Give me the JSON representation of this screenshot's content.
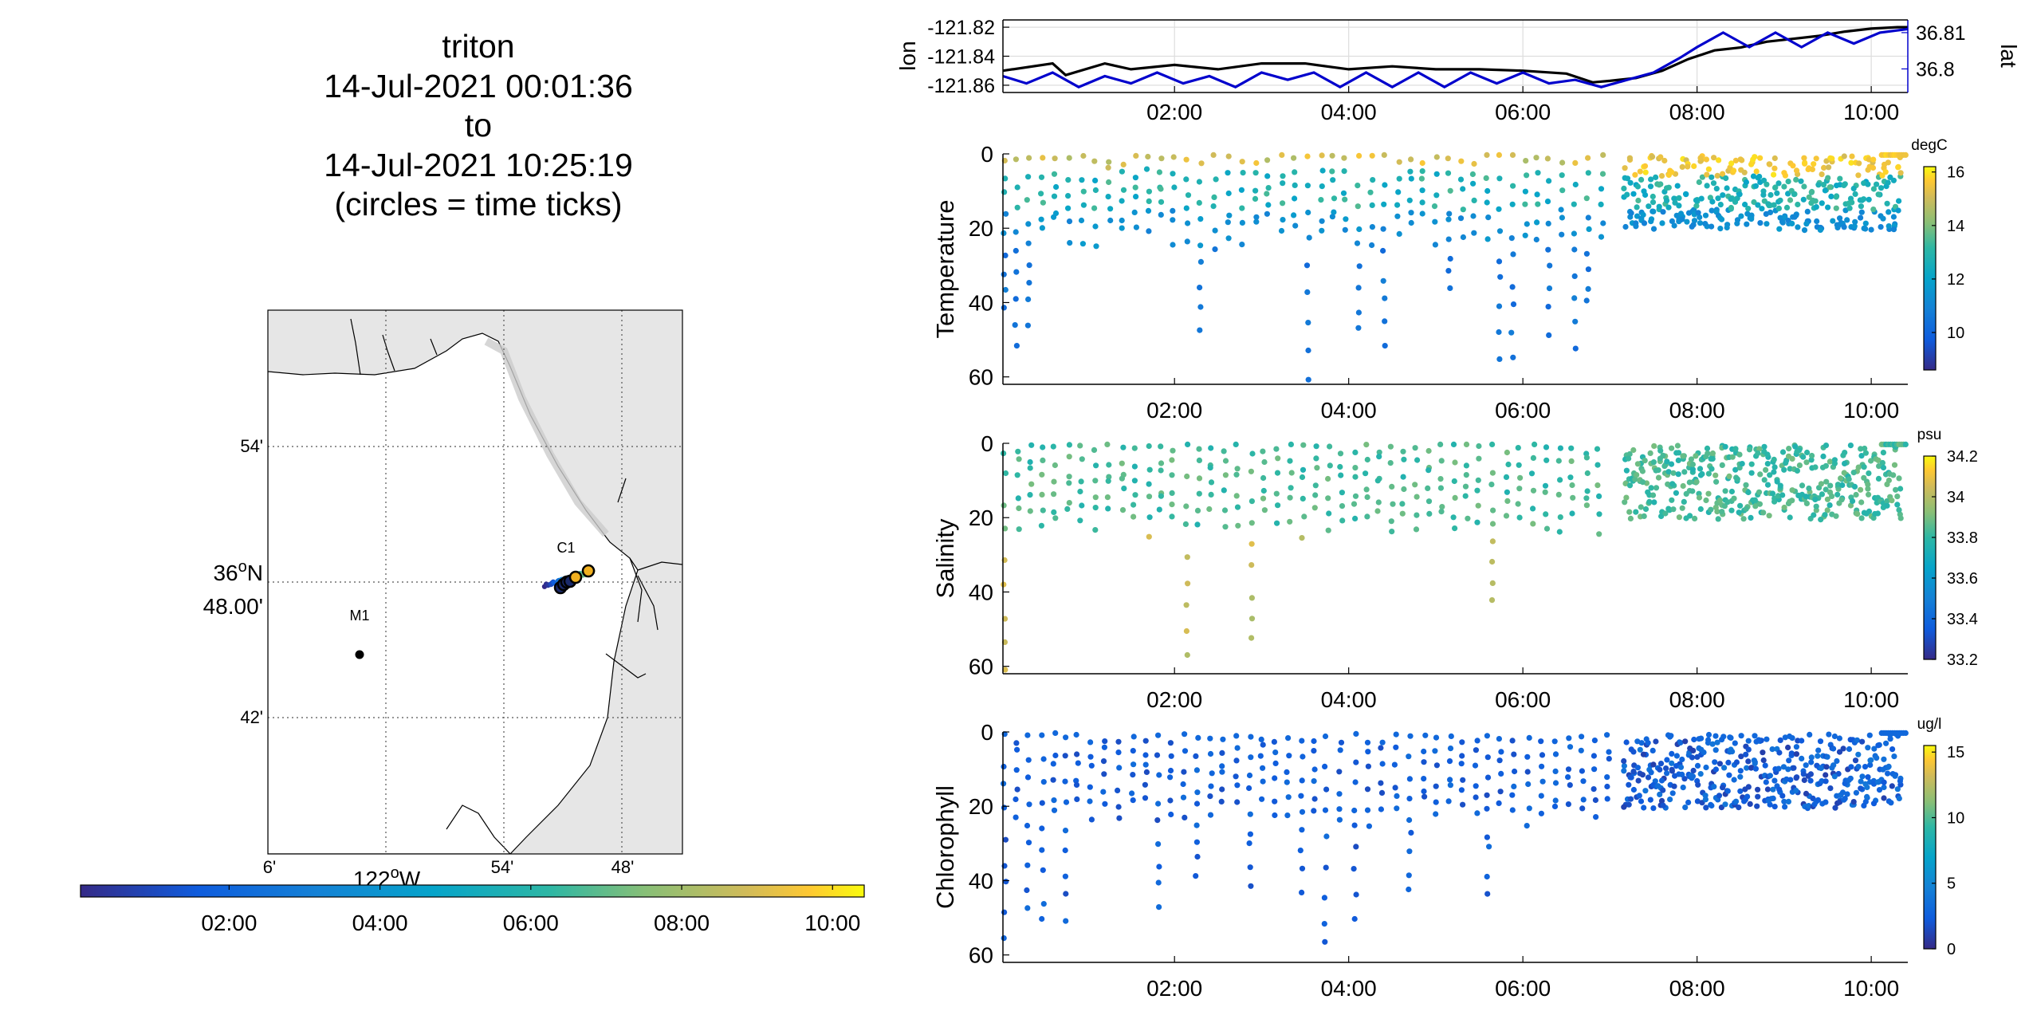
{
  "title": {
    "lines": [
      "triton",
      "14-Jul-2021 00:01:36",
      "to",
      "14-Jul-2021 10:25:19",
      "(circles = time ticks)"
    ]
  },
  "map": {
    "lat_ticks": [
      "54'",
      "42'"
    ],
    "lat_center_label_deg": "36",
    "lat_center_label_sup": "o",
    "lat_center_label_hem": "N",
    "lat_center_label_min": "48.00'",
    "lon_ticks": [
      "6'",
      "54'",
      "48'"
    ],
    "lon_center_label_deg": "122",
    "lon_center_label_sup": "o",
    "lon_center_label_hem": "W",
    "stations": [
      {
        "name": "M1"
      },
      {
        "name": "C1"
      }
    ],
    "colors": {
      "land": "#e6e6e6",
      "water": "#ffffff",
      "coast": "#000000"
    }
  },
  "time_colorbar": {
    "ticks": [
      "02:00",
      "04:00",
      "06:00",
      "08:00",
      "10:00"
    ],
    "tick_hours": [
      2,
      4,
      6,
      8,
      10
    ],
    "range_hours": [
      0.03,
      10.42
    ]
  },
  "chart_data": [
    {
      "type": "line",
      "ylabel": "lon",
      "y2label": "lat",
      "x_ticks": [
        "02:00",
        "04:00",
        "06:00",
        "08:00",
        "10:00"
      ],
      "x_tick_hours": [
        2,
        4,
        6,
        8,
        10
      ],
      "xlim_hours": [
        0.03,
        10.42
      ],
      "y_ticks": [
        "-121.82",
        "-121.84",
        "-121.86"
      ],
      "y_tick_values": [
        -121.82,
        -121.84,
        -121.86
      ],
      "ylim": [
        -121.865,
        -121.815
      ],
      "y2_ticks": [
        "36.81",
        "36.8"
      ],
      "y2_tick_values": [
        36.81,
        36.8
      ],
      "y2lim": [
        36.7935,
        36.8135
      ],
      "grid": true,
      "series": [
        {
          "axis": "left",
          "color": "#000000",
          "x": [
            0.03,
            0.6,
            0.75,
            1.2,
            1.5,
            2.0,
            2.5,
            3.0,
            3.5,
            4.0,
            4.5,
            5.0,
            5.5,
            6.0,
            6.5,
            6.8,
            7.0,
            7.3,
            7.6,
            7.9,
            8.2,
            8.5,
            8.8,
            9.1,
            9.4,
            9.7,
            10.0,
            10.3,
            10.42
          ],
          "y": [
            -121.85,
            -121.845,
            -121.853,
            -121.845,
            -121.849,
            -121.846,
            -121.849,
            -121.845,
            -121.845,
            -121.849,
            -121.847,
            -121.849,
            -121.849,
            -121.85,
            -121.852,
            -121.858,
            -121.857,
            -121.855,
            -121.85,
            -121.842,
            -121.836,
            -121.834,
            -121.83,
            -121.828,
            -121.826,
            -121.823,
            -121.821,
            -121.82,
            -121.82
          ]
        },
        {
          "axis": "right",
          "color": "#0000cc",
          "x": [
            0.03,
            0.3,
            0.6,
            0.9,
            1.2,
            1.5,
            1.8,
            2.1,
            2.4,
            2.7,
            3.0,
            3.3,
            3.6,
            3.9,
            4.2,
            4.5,
            4.8,
            5.1,
            5.4,
            5.7,
            6.0,
            6.3,
            6.6,
            6.9,
            7.2,
            7.5,
            7.8,
            8.0,
            8.3,
            8.6,
            8.9,
            9.2,
            9.5,
            9.8,
            10.1,
            10.42
          ],
          "y": [
            36.798,
            36.796,
            36.799,
            36.795,
            36.798,
            36.796,
            36.799,
            36.796,
            36.798,
            36.795,
            36.799,
            36.797,
            36.799,
            36.795,
            36.799,
            36.795,
            36.799,
            36.795,
            36.799,
            36.796,
            36.799,
            36.796,
            36.797,
            36.795,
            36.797,
            36.799,
            36.803,
            36.806,
            36.81,
            36.806,
            36.81,
            36.806,
            36.81,
            36.807,
            36.81,
            36.811
          ]
        }
      ]
    },
    {
      "type": "scatter",
      "ylabel": "Temperature",
      "colorbar_unit": "degC",
      "colorbar_ticks": [
        "16",
        "14",
        "12",
        "10"
      ],
      "colorbar_tick_values": [
        16,
        14,
        12,
        10
      ],
      "clim": [
        8.6,
        16.2
      ],
      "x_ticks": [
        "02:00",
        "04:00",
        "06:00",
        "08:00",
        "10:00"
      ],
      "x_tick_hours": [
        2,
        4,
        6,
        8,
        10
      ],
      "xlim_hours": [
        0.03,
        10.42
      ],
      "y_ticks": [
        "0",
        "20",
        "40",
        "60"
      ],
      "y_tick_values": [
        0,
        20,
        40,
        60
      ],
      "ylim": [
        0,
        62
      ],
      "reversed_y": true
    },
    {
      "type": "scatter",
      "ylabel": "Salinity",
      "colorbar_unit": "psu",
      "colorbar_ticks": [
        "34.2",
        "34",
        "33.8",
        "33.6",
        "33.4",
        "33.2"
      ],
      "colorbar_tick_values": [
        34.2,
        34.0,
        33.8,
        33.6,
        33.4,
        33.2
      ],
      "clim": [
        33.2,
        34.2
      ],
      "x_ticks": [
        "02:00",
        "04:00",
        "06:00",
        "08:00",
        "10:00"
      ],
      "x_tick_hours": [
        2,
        4,
        6,
        8,
        10
      ],
      "xlim_hours": [
        0.03,
        10.42
      ],
      "y_ticks": [
        "0",
        "20",
        "40",
        "60"
      ],
      "y_tick_values": [
        0,
        20,
        40,
        60
      ],
      "ylim": [
        0,
        62
      ],
      "reversed_y": true
    },
    {
      "type": "scatter",
      "ylabel": "Chlorophyll",
      "colorbar_unit": "ug/l",
      "colorbar_ticks": [
        "15",
        "10",
        "5",
        "0"
      ],
      "colorbar_tick_values": [
        15,
        10,
        5,
        0
      ],
      "clim": [
        0,
        15.5
      ],
      "x_ticks": [
        "02:00",
        "04:00",
        "06:00",
        "08:00",
        "10:00"
      ],
      "x_tick_hours": [
        2,
        4,
        6,
        8,
        10
      ],
      "xlim_hours": [
        0.03,
        10.42
      ],
      "y_ticks": [
        "0",
        "20",
        "40",
        "60"
      ],
      "y_tick_values": [
        0,
        20,
        40,
        60
      ],
      "ylim": [
        0,
        62
      ],
      "reversed_y": true
    }
  ]
}
